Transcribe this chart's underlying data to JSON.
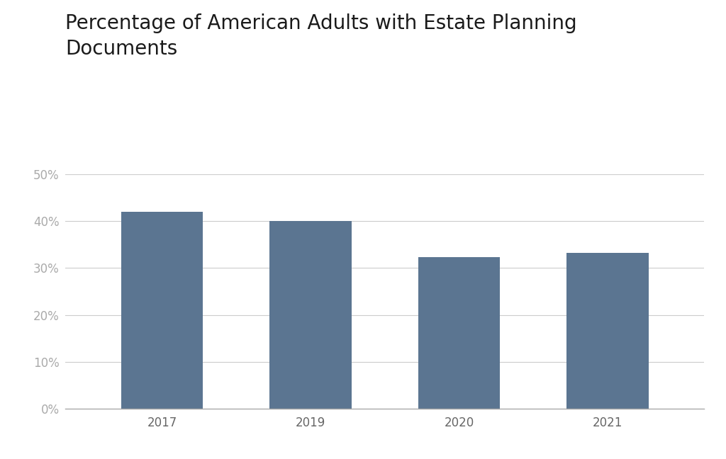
{
  "title_line1": "Percentage of American Adults with Estate Planning",
  "title_line2": "Documents",
  "categories": [
    "2017",
    "2019",
    "2020",
    "2021"
  ],
  "values": [
    0.42,
    0.4,
    0.323,
    0.333
  ],
  "bar_color": "#5b7591",
  "background_color": "#ffffff",
  "ylim": [
    0,
    0.5
  ],
  "yticks": [
    0.0,
    0.1,
    0.2,
    0.3,
    0.4,
    0.5
  ],
  "title_fontsize": 20,
  "tick_fontsize": 12,
  "ytick_color": "#aaaaaa",
  "xtick_color": "#666666",
  "grid_color": "#cccccc",
  "bar_width": 0.55,
  "bottom_spine_color": "#aaaaaa"
}
